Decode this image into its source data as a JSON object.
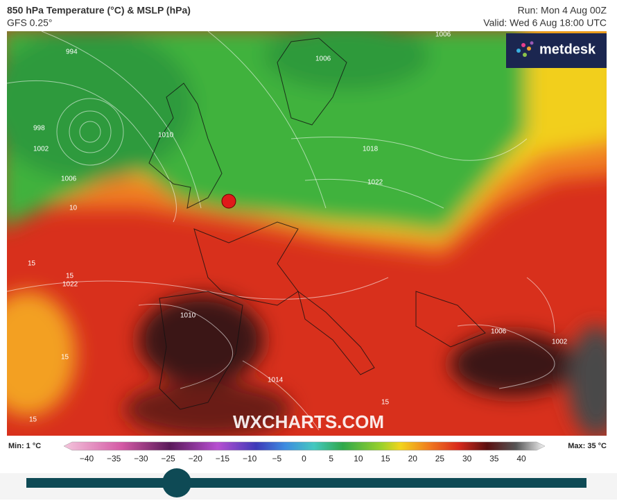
{
  "header": {
    "title": "850 hPa Temperature (°C) & MSLP (hPa)",
    "subtitle": "GFS 0.25°",
    "run": "Run: Mon 4 Aug 00Z",
    "valid": "Valid: Wed 6 Aug 18:00 UTC"
  },
  "logo": "metdesk",
  "watermark": "WXCHARTS.COM",
  "map_labels": [
    "994",
    "998",
    "1002",
    "1006",
    "1010",
    "1006",
    "1006",
    "1018",
    "1022",
    "1010",
    "1014",
    "1006",
    "1002",
    "1022",
    "10",
    "15",
    "15",
    "15",
    "15",
    "15"
  ],
  "colorbar": {
    "min_label": "Min: 1 °C",
    "max_label": "Max: 35 °C",
    "ticks": [
      "−40",
      "−35",
      "−30",
      "−25",
      "−20",
      "−15",
      "−10",
      "−5",
      "0",
      "5",
      "10",
      "15",
      "20",
      "25",
      "30",
      "35",
      "40"
    ]
  }
}
